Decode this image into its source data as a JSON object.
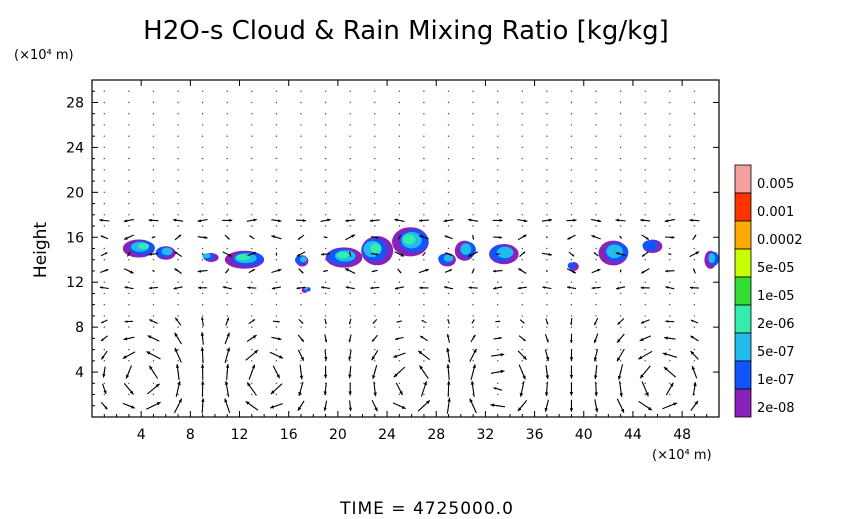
{
  "chart_data": {
    "type": "contour+vector",
    "title": "H2O-s Cloud & Rain Mixing Ratio [kg/kg]",
    "ylabel": "Height",
    "xlabel": "",
    "y_unit": "(×10⁴ m)",
    "x_unit": "(×10⁴ m)",
    "footer": "TIME  =  4725000.0",
    "xlim": [
      0,
      51
    ],
    "ylim": [
      0,
      30
    ],
    "x_ticks": [
      4,
      8,
      12,
      16,
      20,
      24,
      28,
      32,
      36,
      40,
      44,
      48
    ],
    "y_ticks": [
      4,
      8,
      12,
      16,
      20,
      24,
      28
    ],
    "legend": {
      "placement": "right",
      "levels": [
        {
          "label": "0.005",
          "color": "#f4a0a0"
        },
        {
          "label": "0.001",
          "color": "#ff3300"
        },
        {
          "label": "0.0002",
          "color": "#ffaa00"
        },
        {
          "label": "5e-05",
          "color": "#c8ff00"
        },
        {
          "label": "1e-05",
          "color": "#33dd33"
        },
        {
          "label": "2e-06",
          "color": "#33eeaa"
        },
        {
          "label": "5e-07",
          "color": "#22bbee"
        },
        {
          "label": "1e-07",
          "color": "#1155ff"
        },
        {
          "label": "2e-08",
          "color": "#8822bb"
        }
      ]
    },
    "cloud_clusters": [
      {
        "x": 4.0,
        "y": 15.0,
        "w": 2.6,
        "h": 1.6,
        "max_level": 5
      },
      {
        "x": 6.0,
        "y": 14.6,
        "w": 1.6,
        "h": 1.2,
        "max_level": 6
      },
      {
        "x": 9.5,
        "y": 14.2,
        "w": 1.2,
        "h": 0.8,
        "max_level": 6
      },
      {
        "x": 12.5,
        "y": 14.0,
        "w": 3.2,
        "h": 1.6,
        "max_level": 5
      },
      {
        "x": 17.0,
        "y": 13.9,
        "w": 1.0,
        "h": 1.0,
        "max_level": 6
      },
      {
        "x": 17.5,
        "y": 11.3,
        "w": 0.5,
        "h": 0.5,
        "max_level": 6
      },
      {
        "x": 20.5,
        "y": 14.2,
        "w": 3.0,
        "h": 1.8,
        "max_level": 4
      },
      {
        "x": 23.0,
        "y": 14.8,
        "w": 2.6,
        "h": 2.6,
        "max_level": 5
      },
      {
        "x": 26.0,
        "y": 15.6,
        "w": 3.0,
        "h": 2.6,
        "max_level": 5
      },
      {
        "x": 28.8,
        "y": 14.0,
        "w": 1.4,
        "h": 1.2,
        "max_level": 6
      },
      {
        "x": 30.5,
        "y": 14.8,
        "w": 1.6,
        "h": 1.8,
        "max_level": 6
      },
      {
        "x": 33.5,
        "y": 14.5,
        "w": 2.4,
        "h": 1.8,
        "max_level": 6
      },
      {
        "x": 39.0,
        "y": 13.4,
        "w": 0.8,
        "h": 0.8,
        "max_level": 7
      },
      {
        "x": 42.5,
        "y": 14.6,
        "w": 2.4,
        "h": 2.2,
        "max_level": 6
      },
      {
        "x": 45.5,
        "y": 15.2,
        "w": 1.6,
        "h": 1.2,
        "max_level": 7
      },
      {
        "x": 50.5,
        "y": 14.0,
        "w": 1.0,
        "h": 1.6,
        "max_level": 6
      }
    ],
    "vector_field": {
      "description": "wind vectors on regular grid",
      "x_spacing": 2.0,
      "y_spacing": 1.0,
      "circulation_cells": [
        {
          "x": 4.5,
          "y": 3.5
        },
        {
          "x": 14.0,
          "y": 3.5
        },
        {
          "x": 26.0,
          "y": 3.0
        },
        {
          "x": 33.0,
          "y": 3.0
        },
        {
          "x": 46.0,
          "y": 3.0
        }
      ]
    }
  }
}
